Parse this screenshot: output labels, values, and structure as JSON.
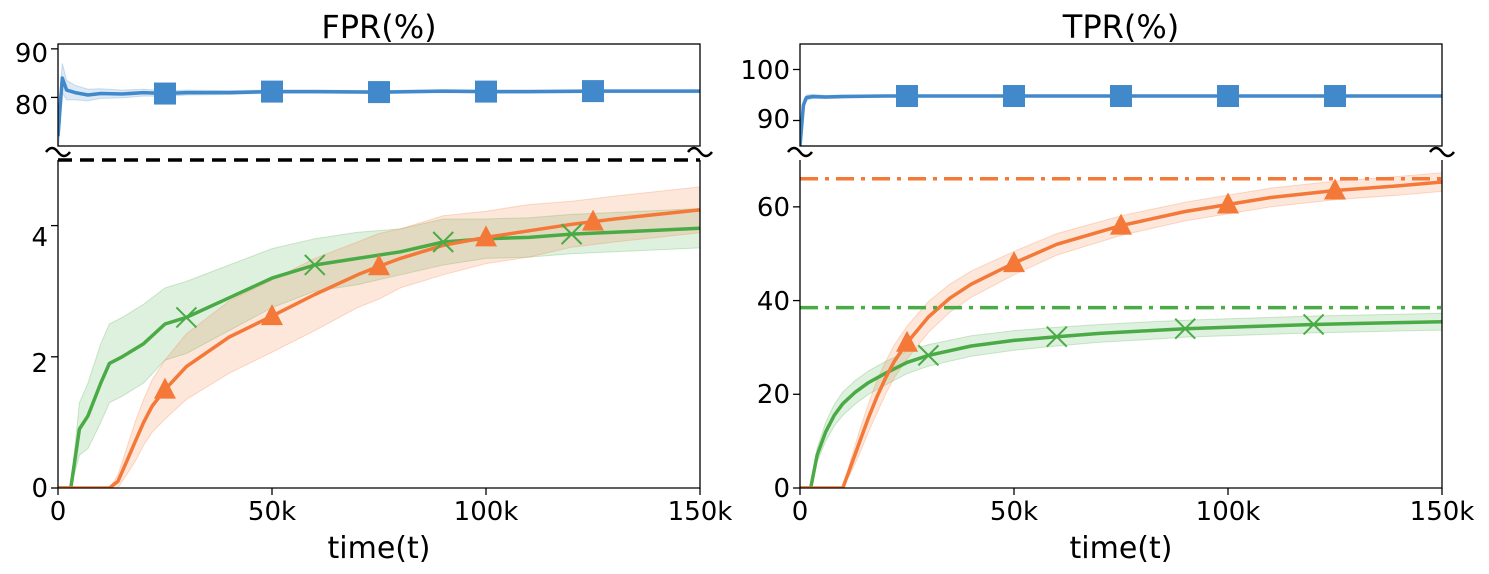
{
  "chart_data": [
    {
      "type": "line",
      "title": "FPR(%)",
      "xlabel": "time(t)",
      "ylabel": "",
      "broken_axis": true,
      "xlim": [
        0,
        150000
      ],
      "x_ticks": [
        0,
        50000,
        100000,
        150000
      ],
      "x_tick_labels": [
        "0",
        "50k",
        "100k",
        "150k"
      ],
      "top_panel": {
        "ylim": [
          70,
          91
        ],
        "y_ticks": [
          80,
          90
        ],
        "y_tick_labels": [
          "80",
          "90"
        ]
      },
      "bottom_panel": {
        "ylim": [
          0,
          5
        ],
        "y_ticks": [
          0,
          2,
          4
        ],
        "y_tick_labels": [
          "0",
          "2",
          "4"
        ]
      },
      "reference_lines": [
        {
          "y": 5,
          "color": "#000000",
          "style": "dashed"
        }
      ],
      "series": [
        {
          "panel": "top",
          "color": "#4189ca",
          "marker": "square",
          "x": [
            0,
            1000,
            2000,
            4000,
            7000,
            10000,
            15000,
            20000,
            25000,
            30000,
            40000,
            50000,
            60000,
            75000,
            90000,
            100000,
            110000,
            125000,
            140000,
            150000
          ],
          "y": [
            72,
            84,
            81.5,
            81,
            80.5,
            80.8,
            80.7,
            81,
            80.8,
            81,
            81,
            81.2,
            81.2,
            81.1,
            81.3,
            81.2,
            81.2,
            81.3,
            81.3,
            81.3
          ],
          "band": [
            4,
            3,
            2,
            1.5,
            1.2,
            1.0,
            0.8,
            0.7,
            0.6,
            0.5,
            0.4,
            0.3,
            0.3,
            0.3,
            0.3,
            0.3,
            0.3,
            0.3,
            0.3,
            0.3
          ],
          "marker_x": [
            25000,
            50000,
            75000,
            100000,
            125000
          ]
        },
        {
          "panel": "bottom",
          "color": "#4aab46",
          "marker": "x",
          "x": [
            0,
            3000,
            5000,
            7000,
            10000,
            12000,
            15000,
            20000,
            25000,
            30000,
            40000,
            50000,
            60000,
            70000,
            80000,
            90000,
            100000,
            110000,
            120000,
            130000,
            140000,
            150000
          ],
          "y": [
            0,
            0,
            0.9,
            1.1,
            1.6,
            1.9,
            2.0,
            2.2,
            2.5,
            2.6,
            2.9,
            3.2,
            3.4,
            3.5,
            3.6,
            3.75,
            3.8,
            3.82,
            3.87,
            3.9,
            3.93,
            3.96
          ],
          "band": [
            0,
            0,
            0.4,
            0.5,
            0.6,
            0.6,
            0.6,
            0.6,
            0.55,
            0.55,
            0.5,
            0.45,
            0.4,
            0.4,
            0.35,
            0.35,
            0.3,
            0.3,
            0.3,
            0.3,
            0.3,
            0.3
          ],
          "marker_x": [
            30000,
            60000,
            90000,
            120000
          ]
        },
        {
          "panel": "bottom",
          "color": "#f47837",
          "marker": "triangle",
          "x": [
            0,
            12000,
            14000,
            16000,
            18000,
            20000,
            22000,
            25000,
            30000,
            40000,
            50000,
            60000,
            70000,
            75000,
            80000,
            90000,
            100000,
            110000,
            120000,
            125000,
            130000,
            140000,
            150000
          ],
          "y": [
            0,
            0,
            0.1,
            0.4,
            0.7,
            1.0,
            1.25,
            1.5,
            1.85,
            2.3,
            2.62,
            2.95,
            3.25,
            3.38,
            3.5,
            3.7,
            3.82,
            3.92,
            4.02,
            4.06,
            4.1,
            4.17,
            4.24
          ],
          "band": [
            0,
            0,
            0.1,
            0.2,
            0.3,
            0.35,
            0.4,
            0.45,
            0.5,
            0.55,
            0.55,
            0.55,
            0.5,
            0.5,
            0.45,
            0.45,
            0.4,
            0.4,
            0.35,
            0.35,
            0.35,
            0.35,
            0.35
          ],
          "marker_x": [
            25000,
            50000,
            75000,
            100000,
            125000
          ]
        }
      ]
    },
    {
      "type": "line",
      "title": "TPR(%)",
      "xlabel": "time(t)",
      "ylabel": "",
      "broken_axis": true,
      "xlim": [
        0,
        150000
      ],
      "x_ticks": [
        0,
        50000,
        100000,
        150000
      ],
      "x_tick_labels": [
        "0",
        "50k",
        "100k",
        "150k"
      ],
      "top_panel": {
        "ylim": [
          85,
          105
        ],
        "y_ticks": [
          90,
          100
        ],
        "y_tick_labels": [
          "90",
          "100"
        ]
      },
      "bottom_panel": {
        "ylim": [
          0,
          70
        ],
        "y_ticks": [
          0,
          20,
          40,
          60
        ],
        "y_tick_labels": [
          "0",
          "20",
          "40",
          "60"
        ]
      },
      "reference_lines": [
        {
          "y": 66,
          "color": "#f47837",
          "style": "dashdot"
        },
        {
          "y": 38.5,
          "color": "#4aab46",
          "style": "dashdot"
        }
      ],
      "series": [
        {
          "panel": "top",
          "color": "#4189ca",
          "marker": "square",
          "x": [
            0,
            800,
            1500,
            3000,
            6000,
            10000,
            20000,
            25000,
            50000,
            75000,
            100000,
            125000,
            150000
          ],
          "y": [
            85,
            93,
            94.5,
            94.7,
            94.6,
            94.7,
            94.8,
            94.8,
            94.8,
            94.8,
            94.8,
            94.8,
            94.8
          ],
          "band": [
            2,
            1,
            0.5,
            0.4,
            0.3,
            0.3,
            0.2,
            0.2,
            0.2,
            0.2,
            0.2,
            0.2,
            0.2
          ],
          "marker_x": [
            25000,
            50000,
            75000,
            100000,
            125000
          ]
        },
        {
          "panel": "bottom",
          "color": "#4aab46",
          "marker": "x",
          "x": [
            0,
            2500,
            4000,
            6000,
            8000,
            10000,
            13000,
            16000,
            20000,
            25000,
            30000,
            40000,
            50000,
            60000,
            70000,
            80000,
            90000,
            100000,
            110000,
            120000,
            130000,
            140000,
            150000
          ],
          "y": [
            0,
            0,
            7,
            12,
            15.5,
            18,
            20.5,
            22.5,
            24.5,
            26.8,
            28.3,
            30.3,
            31.5,
            32.3,
            33,
            33.5,
            34,
            34.3,
            34.6,
            34.9,
            35.1,
            35.3,
            35.5
          ],
          "band": [
            0,
            0,
            1.5,
            2.0,
            2.3,
            2.5,
            2.5,
            2.5,
            2.5,
            2.4,
            2.3,
            2.2,
            2.1,
            2.0,
            1.9,
            1.9,
            1.8,
            1.8,
            1.8,
            1.8,
            1.8,
            1.8,
            1.8
          ],
          "marker_x": [
            30000,
            60000,
            90000,
            120000
          ]
        },
        {
          "panel": "bottom",
          "color": "#f47837",
          "marker": "triangle",
          "x": [
            0,
            10000,
            12000,
            14000,
            16000,
            18000,
            20000,
            22000,
            25000,
            30000,
            35000,
            40000,
            50000,
            60000,
            75000,
            90000,
            100000,
            110000,
            125000,
            140000,
            150000
          ],
          "y": [
            0,
            0,
            5,
            10,
            15,
            19.5,
            23.5,
            27,
            31,
            36.5,
            40.5,
            43.5,
            48,
            52,
            56,
            59,
            60.5,
            62,
            63.5,
            64.5,
            65.3
          ],
          "band": [
            0,
            0,
            1.5,
            2.5,
            3,
            3.5,
            3.5,
            3.5,
            3.5,
            3.3,
            3.0,
            2.8,
            2.5,
            2.3,
            2.1,
            2.0,
            2.0,
            2.0,
            2.0,
            2.0,
            2.0
          ],
          "marker_x": [
            25000,
            50000,
            75000,
            100000,
            125000
          ]
        }
      ]
    }
  ]
}
